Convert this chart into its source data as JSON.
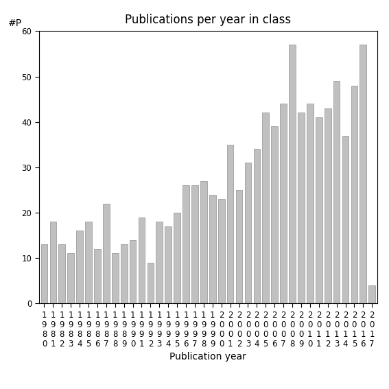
{
  "title": "Publications per year in class",
  "xlabel": "Publication year",
  "ylabel": "#P",
  "years": [
    "1980",
    "1981",
    "1982",
    "1983",
    "1984",
    "1985",
    "1986",
    "1987",
    "1988",
    "1989",
    "1990",
    "1991",
    "1992",
    "1993",
    "1994",
    "1995",
    "1996",
    "1997",
    "1998",
    "1999",
    "2000",
    "2001",
    "2002",
    "2003",
    "2004",
    "2005",
    "2006",
    "2007",
    "2008",
    "2009",
    "2010",
    "2011",
    "2012",
    "2013",
    "2014",
    "2015",
    "2016",
    "2017"
  ],
  "values": [
    13,
    18,
    13,
    11,
    16,
    18,
    12,
    22,
    11,
    13,
    14,
    19,
    9,
    18,
    17,
    20,
    26,
    26,
    27,
    24,
    23,
    35,
    25,
    31,
    34,
    42,
    39,
    44,
    57,
    42,
    44,
    41,
    43,
    49,
    37,
    48,
    57,
    4
  ],
  "bar_color": "#c0c0c0",
  "bar_edgecolor": "#909090",
  "ylim": [
    0,
    60
  ],
  "yticks": [
    0,
    10,
    20,
    30,
    40,
    50,
    60
  ],
  "background_color": "#ffffff",
  "title_fontsize": 12,
  "label_fontsize": 10,
  "tick_fontsize": 8.5
}
